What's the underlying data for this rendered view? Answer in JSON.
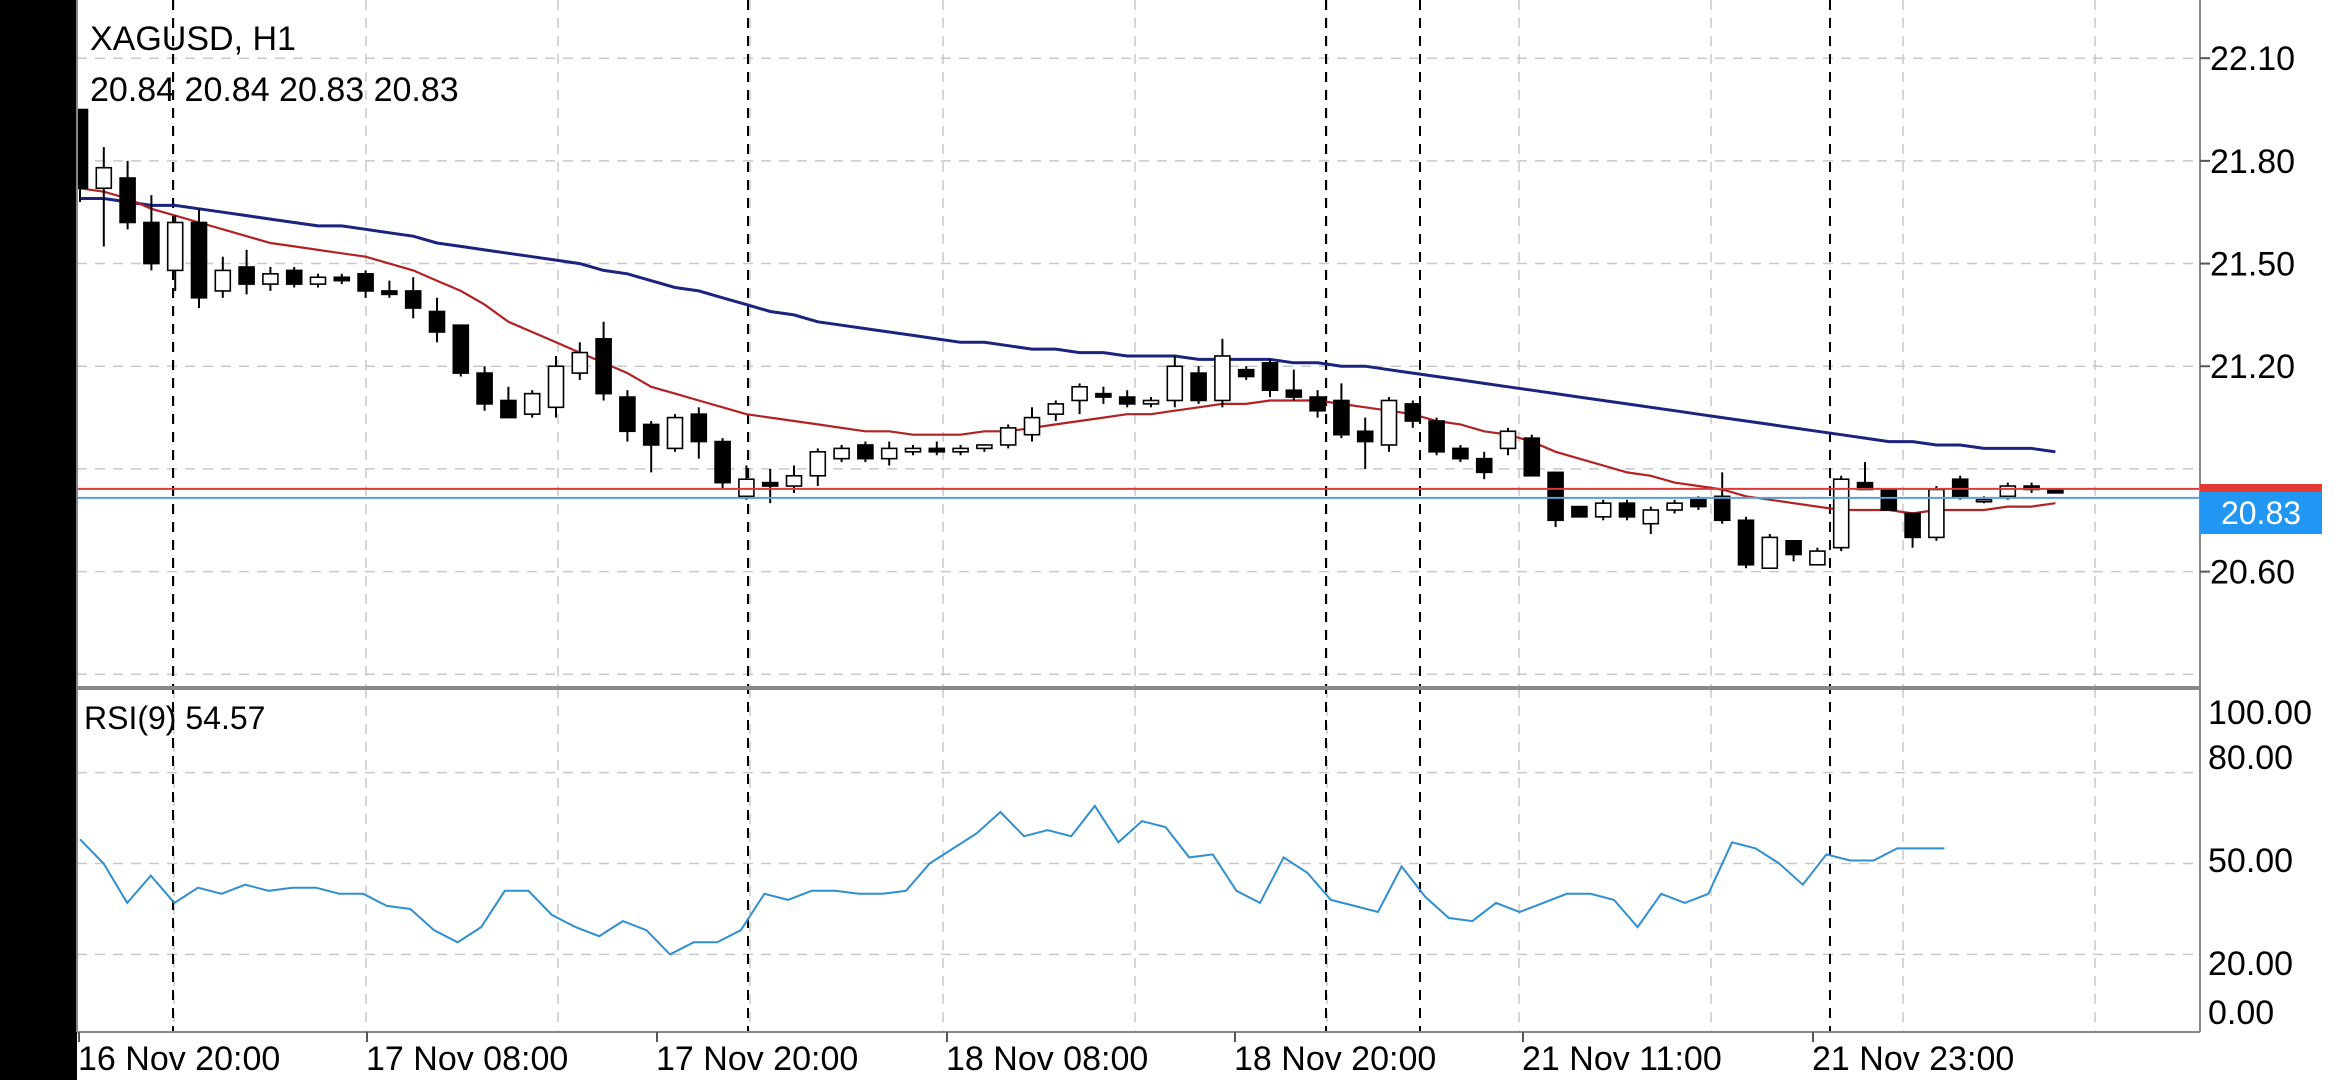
{
  "symbol_label": "XAGUSD, H1",
  "ohlc_label": "20.84 20.84 20.83 20.83",
  "current_price_label": "20.83",
  "rsi_label": "RSI(9) 54.57",
  "colors": {
    "background": "#ffffff",
    "grid": "#c8c8c8",
    "candle": "#000000",
    "ma_fast": "#b22222",
    "ma_slow": "#1a237e",
    "rsi_line": "#2f8fd0",
    "bid_line": "#d93a3a",
    "ask_line": "#5aa0d6",
    "price_badge": "#2196f3",
    "alert_tab": "#e53935",
    "left_bar": "#000000"
  },
  "chart_data": [
    {
      "type": "candlestick",
      "title": "XAGUSD, H1",
      "ylim": [
        20.26,
        22.27
      ],
      "y_ticks": [
        "22.10",
        "21.80",
        "21.50",
        "21.20",
        "20.60"
      ],
      "x_ticks": [
        "16 Nov 20:00",
        "17 Nov 08:00",
        "17 Nov 20:00",
        "18 Nov 08:00",
        "18 Nov 20:00",
        "21 Nov 11:00",
        "21 Nov 23:00"
      ],
      "grid": true,
      "candles": [
        [
          21.95,
          21.95,
          21.68,
          21.72
        ],
        [
          21.72,
          21.84,
          21.55,
          21.78
        ],
        [
          21.75,
          21.8,
          21.6,
          21.62
        ],
        [
          21.62,
          21.7,
          21.48,
          21.5
        ],
        [
          21.48,
          21.64,
          21.42,
          21.62
        ],
        [
          21.62,
          21.66,
          21.37,
          21.4
        ],
        [
          21.42,
          21.52,
          21.4,
          21.48
        ],
        [
          21.49,
          21.54,
          21.41,
          21.44
        ],
        [
          21.44,
          21.49,
          21.42,
          21.47
        ],
        [
          21.48,
          21.49,
          21.43,
          21.44
        ],
        [
          21.44,
          21.47,
          21.43,
          21.46
        ],
        [
          21.46,
          21.47,
          21.44,
          21.45
        ],
        [
          21.47,
          21.48,
          21.4,
          21.42
        ],
        [
          21.42,
          21.45,
          21.4,
          21.41
        ],
        [
          21.42,
          21.46,
          21.34,
          21.37
        ],
        [
          21.36,
          21.4,
          21.27,
          21.3
        ],
        [
          21.32,
          21.32,
          21.17,
          21.18
        ],
        [
          21.18,
          21.2,
          21.07,
          21.09
        ],
        [
          21.1,
          21.14,
          21.05,
          21.05
        ],
        [
          21.06,
          21.13,
          21.05,
          21.12
        ],
        [
          21.08,
          21.23,
          21.05,
          21.2
        ],
        [
          21.18,
          21.27,
          21.16,
          21.24
        ],
        [
          21.28,
          21.33,
          21.1,
          21.12
        ],
        [
          21.11,
          21.13,
          20.98,
          21.01
        ],
        [
          21.03,
          21.04,
          20.89,
          20.97
        ],
        [
          20.96,
          21.06,
          20.95,
          21.05
        ],
        [
          21.06,
          21.08,
          20.93,
          20.98
        ],
        [
          20.98,
          20.99,
          20.84,
          20.86
        ],
        [
          20.82,
          20.91,
          20.81,
          20.87
        ],
        [
          20.86,
          20.9,
          20.8,
          20.85
        ],
        [
          20.85,
          20.91,
          20.83,
          20.88
        ],
        [
          20.88,
          20.96,
          20.85,
          20.95
        ],
        [
          20.93,
          20.97,
          20.92,
          20.96
        ],
        [
          20.97,
          20.98,
          20.92,
          20.93
        ],
        [
          20.93,
          20.98,
          20.91,
          20.96
        ],
        [
          20.95,
          20.97,
          20.94,
          20.96
        ],
        [
          20.96,
          20.98,
          20.94,
          20.95
        ],
        [
          20.95,
          20.97,
          20.94,
          20.96
        ],
        [
          20.96,
          20.97,
          20.95,
          20.97
        ],
        [
          20.97,
          21.03,
          20.96,
          21.02
        ],
        [
          21.0,
          21.08,
          20.98,
          21.05
        ],
        [
          21.06,
          21.1,
          21.04,
          21.09
        ],
        [
          21.1,
          21.15,
          21.06,
          21.14
        ],
        [
          21.12,
          21.14,
          21.09,
          21.11
        ],
        [
          21.11,
          21.13,
          21.08,
          21.09
        ],
        [
          21.09,
          21.11,
          21.08,
          21.1
        ],
        [
          21.1,
          21.23,
          21.08,
          21.2
        ],
        [
          21.18,
          21.2,
          21.09,
          21.1
        ],
        [
          21.1,
          21.28,
          21.08,
          21.23
        ],
        [
          21.19,
          21.2,
          21.16,
          21.17
        ],
        [
          21.21,
          21.22,
          21.11,
          21.13
        ],
        [
          21.13,
          21.19,
          21.1,
          21.11
        ],
        [
          21.11,
          21.13,
          21.05,
          21.07
        ],
        [
          21.1,
          21.15,
          20.99,
          21.0
        ],
        [
          21.01,
          21.05,
          20.9,
          20.98
        ],
        [
          20.97,
          21.11,
          20.95,
          21.1
        ],
        [
          21.09,
          21.1,
          21.02,
          21.04
        ],
        [
          21.04,
          21.05,
          20.94,
          20.95
        ],
        [
          20.96,
          20.97,
          20.92,
          20.93
        ],
        [
          20.93,
          20.95,
          20.87,
          20.89
        ],
        [
          20.96,
          21.02,
          20.94,
          21.01
        ],
        [
          20.99,
          21.0,
          20.88,
          20.88
        ],
        [
          20.89,
          20.89,
          20.73,
          20.75
        ],
        [
          20.79,
          20.79,
          20.76,
          20.76
        ],
        [
          20.76,
          20.81,
          20.75,
          20.8
        ],
        [
          20.8,
          20.81,
          20.75,
          20.76
        ],
        [
          20.74,
          20.79,
          20.71,
          20.78
        ],
        [
          20.78,
          20.81,
          20.77,
          20.8
        ],
        [
          20.81,
          20.82,
          20.78,
          20.79
        ],
        [
          20.82,
          20.89,
          20.74,
          20.75
        ],
        [
          20.75,
          20.76,
          20.61,
          20.62
        ],
        [
          20.61,
          20.71,
          20.61,
          20.7
        ],
        [
          20.69,
          20.69,
          20.63,
          20.65
        ],
        [
          20.62,
          20.67,
          20.62,
          20.66
        ],
        [
          20.67,
          20.88,
          20.66,
          20.87
        ],
        [
          20.86,
          20.92,
          20.84,
          20.84
        ],
        [
          20.84,
          20.84,
          20.78,
          20.78
        ],
        [
          20.77,
          20.77,
          20.67,
          20.7
        ],
        [
          20.7,
          20.85,
          20.69,
          20.84
        ],
        [
          20.87,
          20.88,
          20.81,
          20.82
        ],
        [
          20.81,
          20.82,
          20.8,
          20.81
        ],
        [
          20.82,
          20.86,
          20.81,
          20.85
        ],
        [
          20.85,
          20.86,
          20.83,
          20.84
        ],
        [
          20.84,
          20.84,
          20.83,
          20.83
        ]
      ],
      "ma_fast": [
        21.72,
        21.71,
        21.69,
        21.66,
        21.64,
        21.62,
        21.6,
        21.58,
        21.56,
        21.55,
        21.54,
        21.53,
        21.52,
        21.5,
        21.48,
        21.45,
        21.42,
        21.38,
        21.33,
        21.3,
        21.27,
        21.24,
        21.21,
        21.18,
        21.14,
        21.12,
        21.1,
        21.08,
        21.06,
        21.05,
        21.04,
        21.03,
        21.02,
        21.01,
        21.01,
        21.0,
        21.0,
        21.0,
        21.01,
        21.01,
        21.02,
        21.03,
        21.04,
        21.05,
        21.06,
        21.06,
        21.07,
        21.08,
        21.09,
        21.09,
        21.1,
        21.1,
        21.1,
        21.09,
        21.08,
        21.07,
        21.06,
        21.04,
        21.03,
        21.01,
        21.0,
        20.98,
        20.95,
        20.93,
        20.91,
        20.89,
        20.88,
        20.86,
        20.85,
        20.84,
        20.82,
        20.81,
        20.8,
        20.79,
        20.78,
        20.78,
        20.78,
        20.77,
        20.78,
        20.78,
        20.78,
        20.79,
        20.79,
        20.8
      ],
      "ma_slow": [
        21.69,
        21.69,
        21.68,
        21.67,
        21.67,
        21.66,
        21.65,
        21.64,
        21.63,
        21.62,
        21.61,
        21.61,
        21.6,
        21.59,
        21.58,
        21.56,
        21.55,
        21.54,
        21.53,
        21.52,
        21.51,
        21.5,
        21.48,
        21.47,
        21.45,
        21.43,
        21.42,
        21.4,
        21.38,
        21.36,
        21.35,
        21.33,
        21.32,
        21.31,
        21.3,
        21.29,
        21.28,
        21.27,
        21.27,
        21.26,
        21.25,
        21.25,
        21.24,
        21.24,
        21.23,
        21.23,
        21.23,
        21.22,
        21.22,
        21.22,
        21.22,
        21.21,
        21.21,
        21.2,
        21.2,
        21.19,
        21.18,
        21.17,
        21.16,
        21.15,
        21.14,
        21.13,
        21.12,
        21.11,
        21.1,
        21.09,
        21.08,
        21.07,
        21.06,
        21.05,
        21.04,
        21.03,
        21.02,
        21.01,
        21.0,
        20.99,
        20.98,
        20.98,
        20.97,
        20.97,
        20.96,
        20.96,
        20.96,
        20.95
      ],
      "bid": 20.83,
      "ask": 20.88
    },
    {
      "type": "line",
      "title": "RSI(9) 54.57",
      "ylim": [
        0,
        100
      ],
      "y_ticks": [
        "100.00",
        "80.00",
        "50.00",
        "20.00",
        "0.00"
      ],
      "grid": true,
      "values": [
        58,
        50,
        37,
        46,
        37,
        42,
        40,
        43,
        41,
        42,
        42,
        40,
        40,
        36,
        35,
        28,
        24,
        29,
        41,
        41,
        33,
        29,
        26,
        31,
        28,
        20,
        24,
        24,
        28,
        40,
        38,
        41,
        41,
        40,
        40,
        41,
        50,
        55,
        60,
        67,
        59,
        61,
        59,
        69,
        57,
        64,
        62,
        52,
        53,
        41,
        37,
        52,
        47,
        38,
        36,
        34,
        49,
        39,
        32,
        31,
        37,
        34,
        37,
        40,
        40,
        38,
        29,
        40,
        37,
        40,
        57,
        55,
        50,
        43,
        53,
        51,
        51,
        55,
        55,
        55
      ]
    }
  ]
}
